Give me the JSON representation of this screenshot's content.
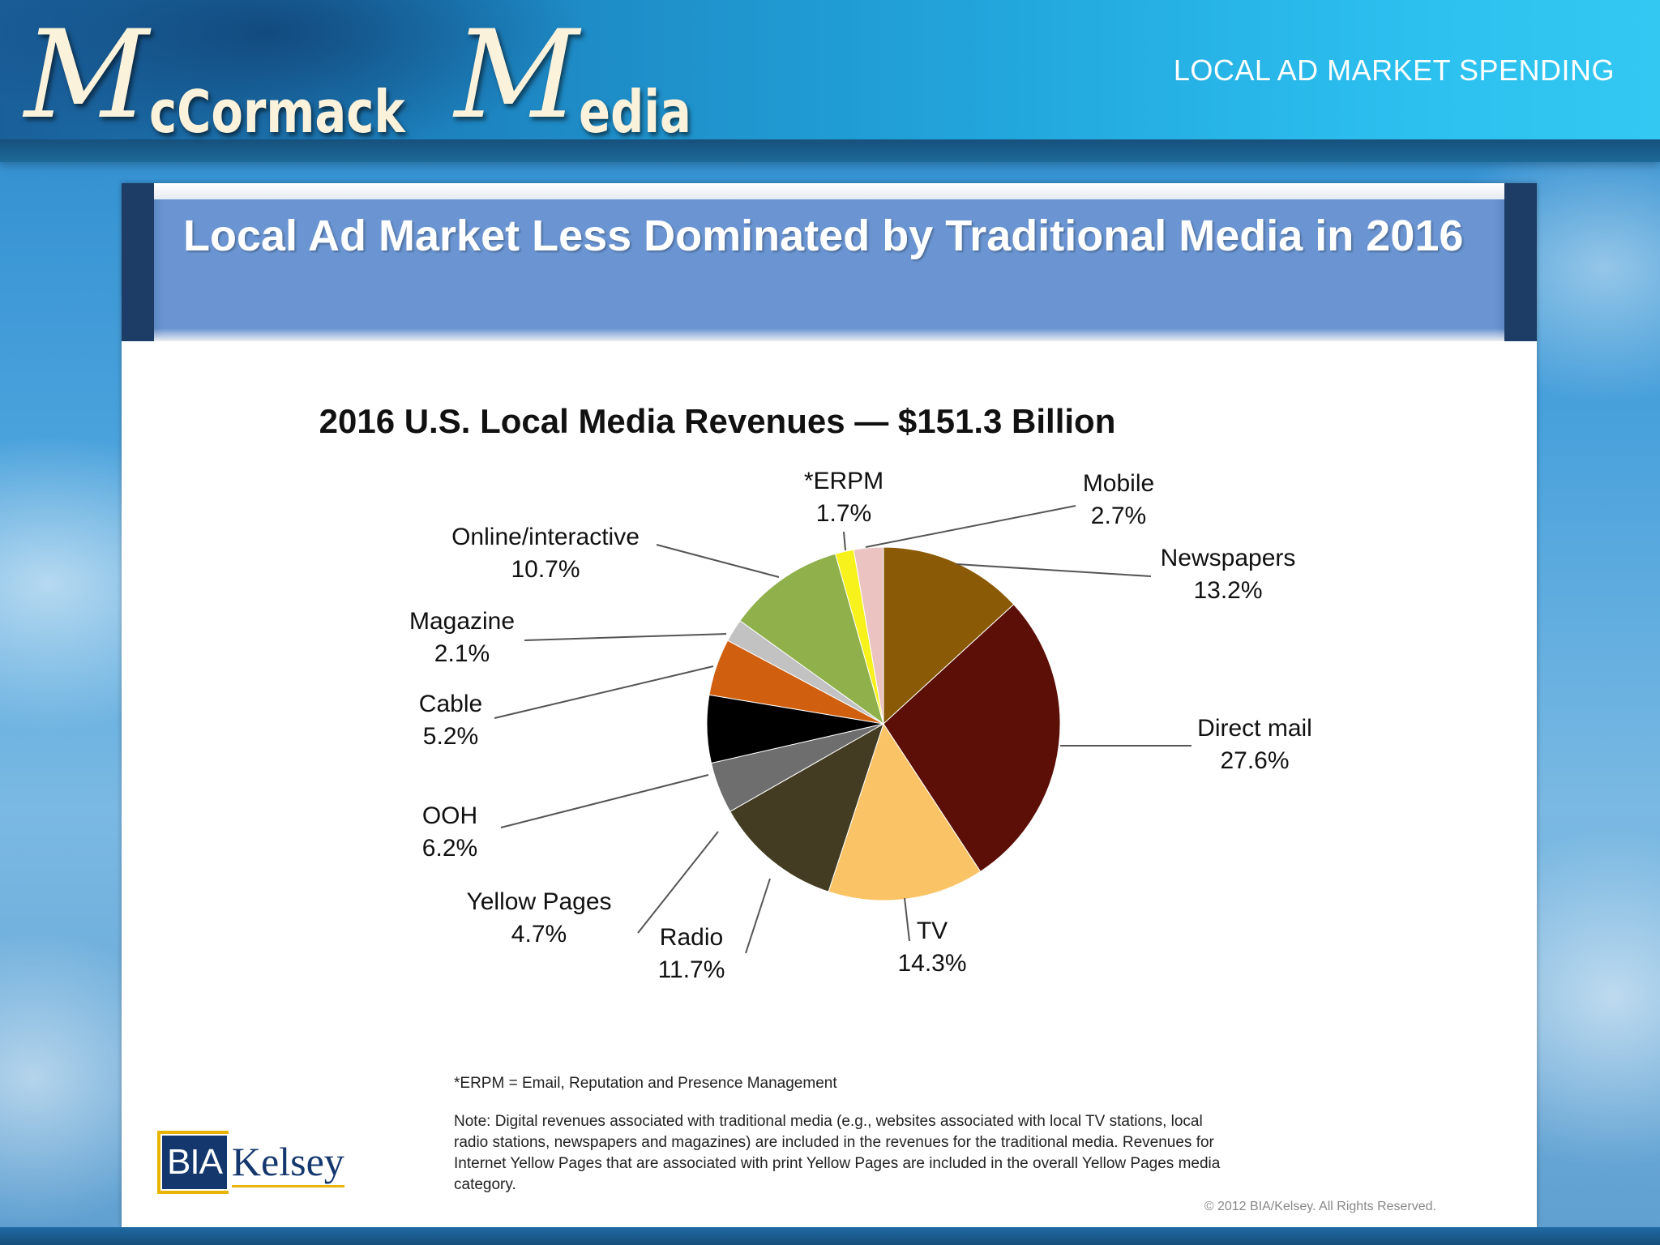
{
  "header": {
    "logo_M1": "M",
    "logo_part1": "cCormack",
    "logo_M2": "M",
    "logo_part2": "edia",
    "slide_title": "LOCAL AD MARKET SPENDING"
  },
  "banner": {
    "title": "Local Ad Market Less Dominated by Traditional Media in 2016"
  },
  "chart_data": {
    "type": "pie",
    "title": "2016 U.S. Local Media Revenues — $151.3 Billion",
    "slices": [
      {
        "label": "Newspapers",
        "value": 13.2,
        "value_label": "13.2%",
        "color": "#8b5a06"
      },
      {
        "label": "Direct mail",
        "value": 27.6,
        "value_label": "27.6%",
        "color": "#5c0f06"
      },
      {
        "label": "TV",
        "value": 14.3,
        "value_label": "14.3%",
        "color": "#fac466"
      },
      {
        "label": "Radio",
        "value": 11.7,
        "value_label": "11.7%",
        "color": "#443c22"
      },
      {
        "label": "Yellow Pages",
        "value": 4.7,
        "value_label": "4.7%",
        "color": "#6e6e6e"
      },
      {
        "label": "OOH",
        "value": 6.2,
        "value_label": "6.2%",
        "color": "#000000"
      },
      {
        "label": "Cable",
        "value": 5.2,
        "value_label": "5.2%",
        "color": "#d06010"
      },
      {
        "label": "Magazine",
        "value": 2.1,
        "value_label": "2.1%",
        "color": "#c2c2c2"
      },
      {
        "label": "Online/interactive",
        "value": 10.7,
        "value_label": "10.7%",
        "color": "#8fb04a"
      },
      {
        "label": "*ERPM",
        "value": 1.7,
        "value_label": "1.7%",
        "color": "#f7f21c"
      },
      {
        "label": "Mobile",
        "value": 2.7,
        "value_label": "2.7%",
        "color": "#ebc3c0"
      }
    ]
  },
  "footnote": "*ERPM = Email, Reputation and Presence Management",
  "note": "Note: Digital revenues associated with traditional media (e.g., websites associated with local TV stations, local radio stations, newspapers and magazines) are included in the revenues for the traditional media. Revenues for Internet Yellow Pages that are associated with print Yellow Pages are included in the overall Yellow Pages media category.",
  "copyright": "© 2012 BIA/Kelsey. All Rights Reserved.",
  "source_logo": {
    "box": "BIA",
    "word": "Kelsey"
  }
}
